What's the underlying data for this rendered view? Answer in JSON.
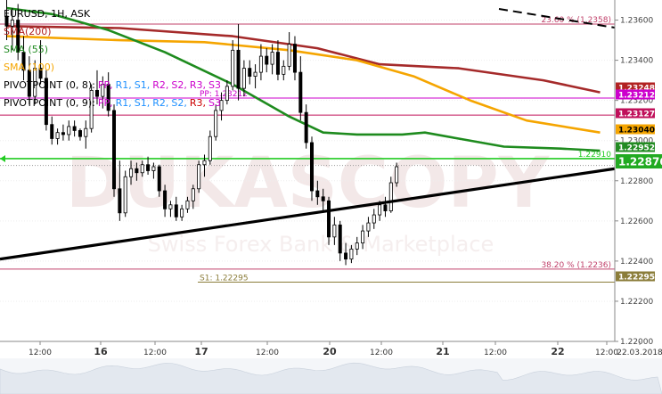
{
  "chart_data": {
    "type": "candlestick",
    "symbol_line": "EURUSD, 1H, ASK",
    "price_axis": {
      "min": 1.22,
      "max": 1.237,
      "ticks": [
        "1.23600",
        "1.23400",
        "1.23200",
        "1.23000",
        "1.22800",
        "1.22600",
        "1.22400",
        "1.22200",
        "1.22000"
      ],
      "tick_values": [
        1.236,
        1.234,
        1.232,
        1.23,
        1.228,
        1.226,
        1.224,
        1.222,
        1.22
      ]
    },
    "time_axis": {
      "labels": [
        "12:00",
        "16",
        "12:00",
        "17",
        "12:00",
        "20",
        "12:00",
        "21",
        "12:00",
        "22",
        "12:00",
        "22.03.2018"
      ],
      "bold": [
        false,
        true,
        false,
        true,
        false,
        true,
        false,
        true,
        false,
        true,
        false,
        false
      ]
    },
    "legend": [
      {
        "parts": [
          {
            "text": "EURUSD, 1H, ASK",
            "color": "#000000"
          }
        ]
      },
      {
        "parts": [
          {
            "text": "SMA(200)",
            "color": "#b22222"
          }
        ]
      },
      {
        "parts": [
          {
            "text": "SMA (55)",
            "color": "#228b22"
          }
        ]
      },
      {
        "parts": [
          {
            "text": "SMA (100)",
            "color": "#f5a500"
          }
        ]
      },
      {
        "parts": [
          {
            "text": "PIVOTPOINT (0, 8):",
            "color": "#000000"
          },
          {
            "text": "PP,",
            "color": "#cc00cc"
          },
          {
            "text": "R1,",
            "color": "#1e90ff"
          },
          {
            "text": "S1,",
            "color": "#1e90ff"
          },
          {
            "text": "R2,",
            "color": "#cc00cc"
          },
          {
            "text": "S2,",
            "color": "#cc00cc"
          },
          {
            "text": "R3,",
            "color": "#cc00cc"
          },
          {
            "text": "S3",
            "color": "#cc00cc"
          }
        ]
      },
      {
        "parts": [
          {
            "text": "PIVOTPOINT (0, 9):",
            "color": "#000000"
          },
          {
            "text": "PP,",
            "color": "#cc00cc"
          },
          {
            "text": "R1,",
            "color": "#1e90ff"
          },
          {
            "text": "S1,",
            "color": "#1e90ff"
          },
          {
            "text": "R2,",
            "color": "#1e90ff"
          },
          {
            "text": "S2,",
            "color": "#1e90ff"
          },
          {
            "text": "R3,",
            "color": "#cc0000"
          },
          {
            "text": "S3",
            "color": "#cc00cc"
          }
        ]
      }
    ],
    "horizontal_levels": [
      {
        "value": 1.2358,
        "label": "23.60 % (1.2358)",
        "color": "#c0406a",
        "style": "solid"
      },
      {
        "value": 1.23212,
        "label": "PP: 1.23212",
        "color": "#cc00cc",
        "style": "solid",
        "tag": "1.23212"
      },
      {
        "value": 1.23127,
        "label": "",
        "color": "#c0105a",
        "style": "solid",
        "tag": "1.23127"
      },
      {
        "value": 1.2291,
        "label": "1.22910",
        "color": "#22cc22",
        "style": "solid"
      },
      {
        "value": 1.2236,
        "label": "38.20 % (1.2236)",
        "color": "#c0406a",
        "style": "solid"
      },
      {
        "value": 1.22295,
        "label": "S1: 1.22295",
        "color": "#8b7d3a",
        "style": "solid",
        "tag": "1.22295"
      }
    ],
    "price_tags": [
      {
        "value": 1.23248,
        "text": "1.23248",
        "color": "#b22222"
      },
      {
        "value": 1.23212,
        "text": "1.23212",
        "color": "#cc00cc"
      },
      {
        "value": 1.23127,
        "text": "1.23127",
        "color": "#c0105a"
      },
      {
        "value": 1.2304,
        "text": "1.23040",
        "color": "#f5a500"
      },
      {
        "value": 1.22952,
        "text": "1.22952",
        "color": "#228b22"
      },
      {
        "value": 1.22876,
        "text": "1.22876",
        "color": "#22aa22"
      },
      {
        "value": 1.22295,
        "text": "1.22295",
        "color": "#8b7d3a"
      }
    ],
    "candles": [
      [
        1.2362,
        1.237,
        1.235,
        1.2357
      ],
      [
        1.2357,
        1.2366,
        1.2345,
        1.236
      ],
      [
        1.236,
        1.2368,
        1.234,
        1.2344
      ],
      [
        1.2344,
        1.2352,
        1.233,
        1.2335
      ],
      [
        1.2335,
        1.2342,
        1.2318,
        1.2322
      ],
      [
        1.2322,
        1.234,
        1.2318,
        1.2336
      ],
      [
        1.2336,
        1.235,
        1.2328,
        1.2331
      ],
      [
        1.2331,
        1.2335,
        1.2305,
        1.2308
      ],
      [
        1.2308,
        1.2312,
        1.2298,
        1.2301
      ],
      [
        1.2301,
        1.2306,
        1.2298,
        1.2304
      ],
      [
        1.2304,
        1.2308,
        1.23,
        1.2303
      ],
      [
        1.2303,
        1.231,
        1.23,
        1.2307
      ],
      [
        1.2307,
        1.231,
        1.2302,
        1.2305
      ],
      [
        1.2305,
        1.2306,
        1.23,
        1.2302
      ],
      [
        1.2302,
        1.231,
        1.2296,
        1.2306
      ],
      [
        1.2306,
        1.2328,
        1.2304,
        1.2325
      ],
      [
        1.2325,
        1.2335,
        1.2318,
        1.2322
      ],
      [
        1.2322,
        1.2332,
        1.2316,
        1.2328
      ],
      [
        1.2328,
        1.2334,
        1.2312,
        1.2315
      ],
      [
        1.2315,
        1.2318,
        1.2272,
        1.2276
      ],
      [
        1.2276,
        1.229,
        1.226,
        1.2264
      ],
      [
        1.2264,
        1.2285,
        1.2262,
        1.2282
      ],
      [
        1.2282,
        1.229,
        1.2278,
        1.2286
      ],
      [
        1.2286,
        1.2289,
        1.228,
        1.2284
      ],
      [
        1.2284,
        1.229,
        1.2282,
        1.2288
      ],
      [
        1.2288,
        1.2292,
        1.2283,
        1.2285
      ],
      [
        1.2285,
        1.2289,
        1.2281,
        1.2287
      ],
      [
        1.2287,
        1.2288,
        1.2272,
        1.2275
      ],
      [
        1.2275,
        1.2278,
        1.2262,
        1.2266
      ],
      [
        1.2266,
        1.227,
        1.2262,
        1.2268
      ],
      [
        1.2268,
        1.2272,
        1.226,
        1.2262
      ],
      [
        1.2262,
        1.2268,
        1.226,
        1.2266
      ],
      [
        1.2266,
        1.2272,
        1.2264,
        1.227
      ],
      [
        1.227,
        1.2278,
        1.2266,
        1.2276
      ],
      [
        1.2276,
        1.229,
        1.2274,
        1.2288
      ],
      [
        1.2288,
        1.2293,
        1.2282,
        1.229
      ],
      [
        1.229,
        1.2305,
        1.2288,
        1.2302
      ],
      [
        1.2302,
        1.2318,
        1.23,
        1.2315
      ],
      [
        1.2315,
        1.2324,
        1.231,
        1.232
      ],
      [
        1.232,
        1.233,
        1.2318,
        1.2327
      ],
      [
        1.2327,
        1.235,
        1.2325,
        1.2345
      ],
      [
        1.2345,
        1.2358,
        1.232,
        1.2326
      ],
      [
        1.2326,
        1.234,
        1.2322,
        1.2336
      ],
      [
        1.2336,
        1.234,
        1.2328,
        1.2332
      ],
      [
        1.2332,
        1.2338,
        1.2326,
        1.2334
      ],
      [
        1.2334,
        1.2348,
        1.233,
        1.2342
      ],
      [
        1.2342,
        1.2346,
        1.2334,
        1.2338
      ],
      [
        1.2338,
        1.2348,
        1.2333,
        1.2344
      ],
      [
        1.2344,
        1.235,
        1.233,
        1.2333
      ],
      [
        1.2333,
        1.234,
        1.233,
        1.2337
      ],
      [
        1.2337,
        1.2354,
        1.2335,
        1.2348
      ],
      [
        1.2348,
        1.2352,
        1.233,
        1.2334
      ],
      [
        1.2334,
        1.2342,
        1.231,
        1.2314
      ],
      [
        1.2314,
        1.2318,
        1.2296,
        1.2299
      ],
      [
        1.2299,
        1.2302,
        1.227,
        1.2275
      ],
      [
        1.2275,
        1.228,
        1.2268,
        1.2272
      ],
      [
        1.2272,
        1.2276,
        1.2264,
        1.227
      ],
      [
        1.227,
        1.2272,
        1.2248,
        1.2252
      ],
      [
        1.2252,
        1.2262,
        1.2248,
        1.2258
      ],
      [
        1.2258,
        1.226,
        1.224,
        1.2244
      ],
      [
        1.2244,
        1.2249,
        1.2238,
        1.2241
      ],
      [
        1.2241,
        1.2248,
        1.2239,
        1.2246
      ],
      [
        1.2246,
        1.2252,
        1.2243,
        1.2249
      ],
      [
        1.2249,
        1.2258,
        1.2246,
        1.2255
      ],
      [
        1.2255,
        1.2262,
        1.2252,
        1.2259
      ],
      [
        1.2259,
        1.2266,
        1.2256,
        1.2263
      ],
      [
        1.2263,
        1.227,
        1.226,
        1.2268
      ],
      [
        1.2268,
        1.2272,
        1.2262,
        1.2265
      ],
      [
        1.2265,
        1.2282,
        1.2264,
        1.2279
      ],
      [
        1.2279,
        1.2289,
        1.2277,
        1.2287
      ]
    ],
    "sma200": [
      [
        0,
        1.2357
      ],
      [
        20,
        1.2356
      ],
      [
        40,
        1.2352
      ],
      [
        55,
        1.2346
      ],
      [
        66,
        1.2338
      ],
      [
        80,
        1.2336
      ],
      [
        95,
        1.233
      ],
      [
        105,
        1.2324
      ]
    ],
    "sma100": [
      [
        0,
        1.2352
      ],
      [
        20,
        1.235
      ],
      [
        35,
        1.2349
      ],
      [
        50,
        1.2345
      ],
      [
        62,
        1.234
      ],
      [
        72,
        1.2332
      ],
      [
        82,
        1.232
      ],
      [
        92,
        1.231
      ],
      [
        105,
        1.2304
      ]
    ],
    "sma55": [
      [
        0,
        1.2366
      ],
      [
        8,
        1.2363
      ],
      [
        18,
        1.2355
      ],
      [
        28,
        1.2344
      ],
      [
        40,
        1.2328
      ],
      [
        50,
        1.2312
      ],
      [
        56,
        1.2304
      ],
      [
        62,
        1.2303
      ],
      [
        70,
        1.2303
      ],
      [
        74,
        1.2304
      ],
      [
        80,
        1.2301
      ],
      [
        88,
        1.2297
      ],
      [
        98,
        1.2296
      ],
      [
        105,
        1.2295
      ]
    ],
    "trendline_black": {
      "from": [
        0,
        1.2241
      ],
      "to": [
        108,
        1.2286
      ]
    },
    "trendline_dashed": {
      "from": [
        86,
        1.237
      ],
      "to": [
        108,
        1.2362
      ]
    },
    "watermark": "DUKASCOPY",
    "watermark_sub": "Swiss Forex Bank & Marketplace"
  }
}
